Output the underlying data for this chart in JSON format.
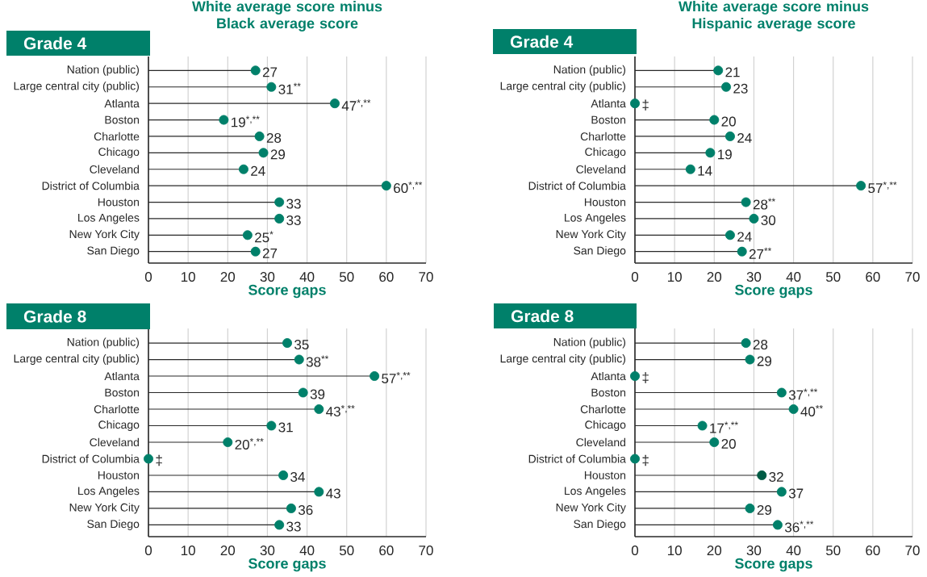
{
  "chart_data": [
    {
      "type": "lollipop",
      "orientation": "horizontal",
      "title": "White average score minus Black average score",
      "subtitle": "Grade 4",
      "xlabel": "Score gaps",
      "categories": [
        "Nation (public)",
        "Large central city (public)",
        "Atlanta",
        "Boston",
        "Charlotte",
        "Chicago",
        "Cleveland",
        "District of Columbia",
        "Houston",
        "Los Angeles",
        "New York City",
        "San Diego"
      ],
      "values": [
        27,
        31,
        47,
        19,
        28,
        29,
        24,
        60,
        33,
        33,
        25,
        27
      ],
      "value_labels": [
        "27",
        "31$^{**}$",
        "47$^{*,**}$",
        "19$^{*,**}$",
        "28",
        "29",
        "24",
        "60$^{*,**}$",
        "33",
        "33",
        "25$^{*}$",
        "27"
      ],
      "color": "#00806a",
      "marker": "circle",
      "grid": "x",
      "xlim": [
        0,
        70
      ],
      "xticks": [
        0,
        10,
        20,
        30,
        40,
        50,
        60,
        70
      ]
    },
    {
      "type": "lollipop",
      "orientation": "horizontal",
      "title": "White average score minus Hispanic average score",
      "subtitle": "Grade 4",
      "xlabel": "Score gaps",
      "categories": [
        "Nation (public)",
        "Large central city (public)",
        "Atlanta",
        "Boston",
        "Charlotte",
        "Chicago",
        "Cleveland",
        "District of Columbia",
        "Houston",
        "Los Angeles",
        "New York City",
        "San Diego"
      ],
      "values": [
        21,
        23,
        0,
        20,
        24,
        19,
        14,
        57,
        28,
        30,
        24,
        27
      ],
      "value_labels": [
        "21",
        "23",
        "‡",
        "20",
        "24",
        "19",
        "14",
        "57$^{*,**}$",
        "28$^{**}$",
        "30",
        "24",
        "27$^{**}$"
      ],
      "color": "#00806a",
      "marker": "circle",
      "grid": "x",
      "xlim": [
        0,
        70
      ],
      "xticks": [
        0,
        10,
        20,
        30,
        40,
        50,
        60,
        70
      ]
    },
    {
      "type": "lollipop",
      "orientation": "horizontal",
      "subtitle": "Grade 8",
      "xlabel": "Score gaps",
      "categories": [
        "Nation (public)",
        "Large central city (public)",
        "Atlanta",
        "Boston",
        "Charlotte",
        "Chicago",
        "Cleveland",
        "District of Columbia",
        "Houston",
        "Los Angeles",
        "New York City",
        "San Diego"
      ],
      "values": [
        35,
        38,
        57,
        39,
        43,
        31,
        20,
        0,
        34,
        43,
        36,
        33
      ],
      "value_labels": [
        "35",
        "38$^{**}$",
        "57$^{*,**}$",
        "39",
        "43$^{*,**}$",
        "31",
        "20$^{*,**}$",
        "‡",
        "34",
        "43",
        "36",
        "33"
      ],
      "color": "#00806a",
      "marker": "circle",
      "grid": "x",
      "xlim": [
        0,
        70
      ],
      "xticks": [
        0,
        10,
        20,
        30,
        40,
        50,
        60,
        70
      ]
    },
    {
      "type": "lollipop",
      "orientation": "horizontal",
      "subtitle": "Grade 8",
      "xlabel": "Score gaps",
      "categories": [
        "Nation (public)",
        "Large central city (public)",
        "Atlanta",
        "Boston",
        "Charlotte",
        "Chicago",
        "Cleveland",
        "District of Columbia",
        "Houston",
        "Los Angeles",
        "New York City",
        "San Diego"
      ],
      "values": [
        28,
        29,
        0,
        37,
        40,
        17,
        20,
        0,
        32,
        37,
        29,
        36
      ],
      "value_labels": [
        "28",
        "29",
        "‡",
        "37$^{*,**}$",
        "40$^{**}$",
        "17$^{*,**}$",
        "20",
        "‡",
        "32",
        "37",
        "29",
        "36$^{*,**}$"
      ],
      "colors": [
        "#00806a",
        "#00806a",
        "#00806a",
        "#00806a",
        "#00806a",
        "#00806a",
        "#00806a",
        "#00806a",
        "#005c45",
        "#00806a",
        "#00806a",
        "#00806a"
      ],
      "marker": "circle",
      "grid": "x",
      "xlim": [
        0,
        70
      ],
      "xticks": [
        0,
        10,
        20,
        30,
        40,
        50,
        60,
        70
      ]
    }
  ]
}
